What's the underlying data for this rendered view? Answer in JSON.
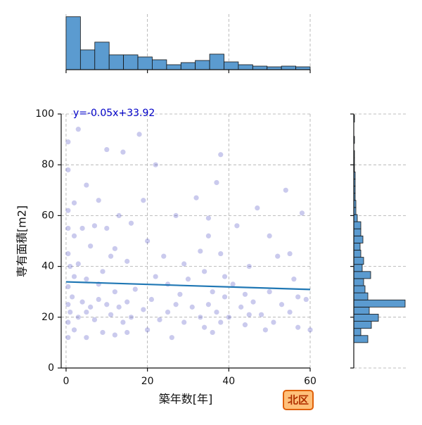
{
  "chart_data": [
    {
      "type": "scatter",
      "x_label": "築年数[年]",
      "y_label": "専有面積[m2]",
      "color": "#2a2ab8",
      "xlim": [
        -1.2,
        60
      ],
      "ylim": [
        0,
        100
      ],
      "xticks": [
        0,
        20,
        40,
        60
      ],
      "yticks": [
        0,
        20,
        40,
        60,
        80,
        100
      ],
      "grid": true,
      "x": [
        0.5,
        0.5,
        0.5,
        0.5,
        0.5,
        0.5,
        0.5,
        0.5,
        1,
        1,
        1.5,
        2,
        2,
        2,
        3,
        3,
        4,
        4,
        5,
        5,
        5,
        6,
        6,
        7,
        7,
        8,
        8,
        9,
        9,
        10,
        10,
        11,
        11,
        12,
        12,
        13,
        13,
        14,
        14,
        15,
        15,
        16,
        17,
        18,
        19,
        20,
        20,
        21,
        22,
        23,
        24,
        25,
        26,
        27,
        28,
        29,
        30,
        31,
        32,
        33,
        34,
        34,
        35,
        35,
        36,
        36,
        37,
        37,
        38,
        38,
        39,
        40,
        41,
        42,
        43,
        44,
        45,
        46,
        47,
        48,
        50,
        51,
        52,
        53,
        54,
        55,
        56,
        57,
        58,
        59,
        3,
        8,
        12,
        16,
        22,
        27,
        33,
        38,
        44,
        50,
        55,
        5,
        15,
        25,
        35,
        45,
        57,
        2,
        19,
        29,
        39,
        49,
        60,
        0.5,
        10
      ],
      "values": [
        12,
        18,
        25,
        32,
        45,
        55,
        62,
        78,
        22,
        40,
        28,
        15,
        52,
        65,
        20,
        94,
        26,
        55,
        12,
        35,
        72,
        24,
        48,
        19,
        56,
        27,
        66,
        14,
        38,
        25,
        55,
        21,
        44,
        13,
        30,
        24,
        60,
        18,
        85,
        26,
        42,
        20,
        31,
        92,
        23,
        15,
        50,
        27,
        36,
        19,
        44,
        22,
        12,
        60,
        29,
        18,
        35,
        24,
        67,
        20,
        16,
        38,
        25,
        52,
        14,
        30,
        22,
        73,
        18,
        45,
        28,
        20,
        33,
        56,
        24,
        17,
        40,
        26,
        63,
        21,
        30,
        18,
        44,
        25,
        70,
        22,
        35,
        16,
        61,
        27,
        41,
        33,
        47,
        57,
        80,
        25,
        46,
        84,
        29,
        52,
        45,
        22,
        14,
        33,
        59,
        21,
        28,
        36,
        66,
        41,
        36,
        15,
        15,
        89,
        86
      ],
      "regression": {
        "slope": -0.05,
        "intercept": 33.92,
        "label": "y=-0.05x+33.92",
        "color": "#1f77b4"
      },
      "badge": "北区"
    },
    {
      "type": "histogram",
      "orientation": "vertical",
      "color": "#5b9bd0",
      "bins": [
        0,
        3.53,
        7.06,
        10.59,
        14.12,
        17.65,
        21.18,
        24.71,
        28.24,
        31.76,
        35.29,
        38.82,
        42.35,
        45.88,
        49.41,
        52.94,
        56.47,
        60
      ],
      "counts": [
        300,
        112,
        156,
        84,
        84,
        72,
        56,
        28,
        40,
        52,
        88,
        44,
        28,
        20,
        16,
        20,
        16
      ],
      "xlim": [
        -1.2,
        60
      ],
      "ylim": [
        0,
        315
      ],
      "xticks": [
        0,
        20,
        40,
        60
      ],
      "grid": true
    },
    {
      "type": "histogram",
      "orientation": "horizontal",
      "color": "#5b9bd0",
      "bins": [
        10,
        12.8,
        15.6,
        18.4,
        21.2,
        24,
        26.8,
        29.6,
        32.4,
        35.2,
        38,
        40.8,
        43.6,
        46.4,
        49.2,
        52,
        54.8,
        57.6,
        60.4,
        63.2,
        66,
        68.8,
        71.6,
        74.4,
        77.2,
        80,
        82.8,
        85.6,
        88.4,
        91.2,
        94,
        96.8,
        99.6
      ],
      "counts": [
        80,
        40,
        100,
        140,
        88,
        292,
        80,
        64,
        56,
        96,
        48,
        56,
        40,
        36,
        52,
        40,
        40,
        20,
        12,
        12,
        8,
        8,
        8,
        8,
        4,
        4,
        4,
        0,
        4,
        0,
        0,
        4
      ],
      "xlim": [
        0,
        300
      ],
      "ylim": [
        0,
        100
      ],
      "yticks": [
        0,
        20,
        40,
        60,
        80,
        100
      ],
      "grid": true
    }
  ]
}
